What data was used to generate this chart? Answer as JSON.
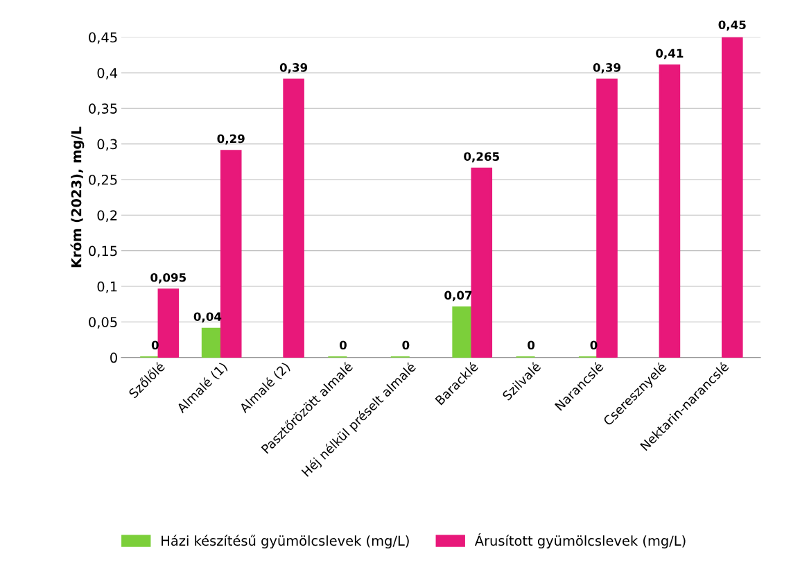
{
  "chart_data": {
    "type": "bar",
    "ylabel": "Króm (2023), mg/L",
    "categories": [
      "Szőlőlé",
      "Almalé (1)",
      "Almalé (2)",
      "Pasztőrözött almalé",
      "Héj nélkül préselt almalé",
      "Baracklé",
      "Szilvalé",
      "Narancslé",
      "Cseresznyelé",
      "Nektarin-narancslé"
    ],
    "series": [
      {
        "name": "Házi készítésű gyümölcslevek (mg/L)",
        "color": "#7ccf3a",
        "values": [
          0,
          0.04,
          null,
          0,
          0,
          0.07,
          0,
          0,
          null,
          null
        ],
        "value_labels": [
          "0",
          "0,04",
          null,
          "0",
          "0",
          "0,07",
          "0",
          "0",
          null,
          null
        ]
      },
      {
        "name": "Árusított gyümölcslevek (mg/L)",
        "color": "#e8187a",
        "values": [
          0.095,
          0.29,
          0.39,
          null,
          null,
          0.265,
          null,
          0.39,
          0.41,
          0.45
        ],
        "value_labels": [
          "0,095",
          "0,29",
          "0,39",
          null,
          null,
          "0,265",
          null,
          "0,39",
          "0,41",
          "0,45"
        ]
      }
    ],
    "ylim": [
      0,
      0.45
    ],
    "yticks": [
      {
        "value": 0,
        "label": "0"
      },
      {
        "value": 0.05,
        "label": "0,05"
      },
      {
        "value": 0.1,
        "label": "0,1"
      },
      {
        "value": 0.15,
        "label": "0,15"
      },
      {
        "value": 0.2,
        "label": "0,2"
      },
      {
        "value": 0.25,
        "label": "0,25"
      },
      {
        "value": 0.3,
        "label": "0,3"
      },
      {
        "value": 0.35,
        "label": "0,35"
      },
      {
        "value": 0.4,
        "label": "0,4"
      },
      {
        "value": 0.45,
        "label": "0,45"
      }
    ],
    "grid": "y",
    "legend": "bottom"
  }
}
